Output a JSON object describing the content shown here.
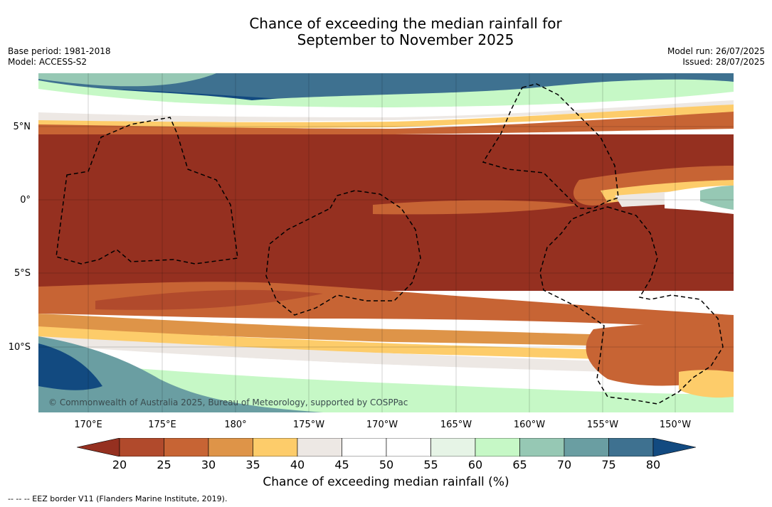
{
  "title_line1": "Chance of exceeding the median rainfall for",
  "title_line2": "September to November 2025",
  "meta_left": {
    "base_period": "Base period: 1981-2018",
    "model": "Model: ACCESS-S2"
  },
  "meta_right": {
    "model_run": "Model run: 26/07/2025",
    "issued": "Issued: 28/07/2025"
  },
  "map": {
    "lat_labels": [
      "5°N",
      "0°",
      "5°S",
      "10°S"
    ],
    "lon_labels": [
      "170°E",
      "175°E",
      "180°",
      "175°W",
      "170°W",
      "165°W",
      "160°W",
      "155°W",
      "150°W"
    ],
    "copyright": "© Commonwealth of Australia 2025, Bureau of Meteorology, supported by COSPPac",
    "colors": {
      "p15": "#8b2c1c",
      "p20": "#953020",
      "p25": "#b14a2c",
      "p30": "#c76434",
      "p35": "#de9448",
      "p40": "#fdcc6a",
      "p45": "#ede8e4",
      "p50": "#ffffff",
      "p55": "#ffffff",
      "p60": "#e6f4e6",
      "p65": "#c6f8c6",
      "p70": "#96c8b4",
      "p75": "#6a9ea2",
      "p80": "#3e7190",
      "p85": "#124a80"
    }
  },
  "colorbar": {
    "ticks": [
      "20",
      "25",
      "30",
      "35",
      "40",
      "45",
      "50",
      "55",
      "60",
      "65",
      "70",
      "75",
      "80"
    ],
    "colors": [
      "#b14a2c",
      "#c76434",
      "#de9448",
      "#fdcc6a",
      "#ede8e4",
      "#ffffff",
      "#ffffff",
      "#e6f4e6",
      "#c6f8c6",
      "#96c8b4",
      "#6a9ea2",
      "#3e7190"
    ],
    "under_color": "#953020",
    "over_color": "#124a80",
    "label": "Chance of exceeding median rainfall (%)"
  },
  "footnote": "--  --  -- EEZ border V11 (Flanders Marine Institute, 2019)."
}
